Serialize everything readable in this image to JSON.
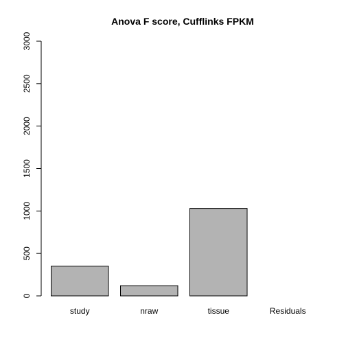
{
  "chart_data": {
    "type": "bar",
    "title": "Anova F score, Cufflinks FPKM",
    "xlabel": "",
    "ylabel": "",
    "categories": [
      "study",
      "nraw",
      "tissue",
      "Residuals"
    ],
    "values": [
      350,
      120,
      1030,
      0
    ],
    "ylim": [
      0,
      3000
    ],
    "yticks": [
      0,
      500,
      1000,
      1500,
      2000,
      2500,
      3000
    ],
    "grid": false,
    "legend": "none",
    "colors": {
      "bar_fill": "#b3b3b3",
      "bar_stroke": "#000000",
      "axis": "#000000"
    }
  }
}
